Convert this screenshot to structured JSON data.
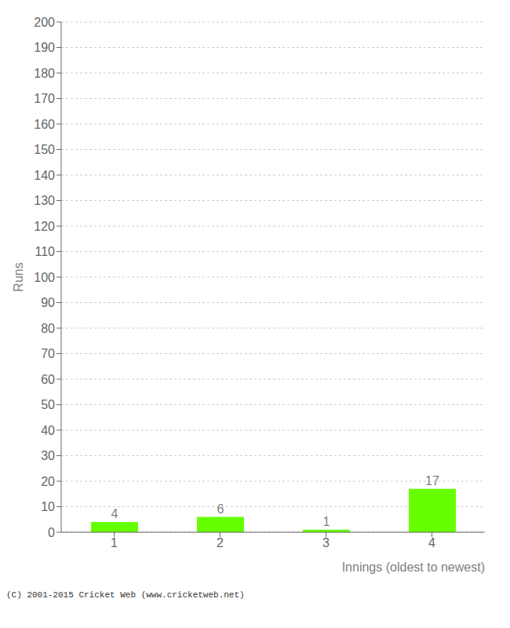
{
  "chart_data": {
    "type": "bar",
    "categories": [
      1,
      2,
      3,
      4
    ],
    "values": [
      4,
      6,
      1,
      17
    ],
    "color": "#66ff00",
    "xlabel": "Innings (oldest to newest)",
    "ylabel": "Runs",
    "ylim": [
      0,
      200
    ],
    "yticks": [
      0,
      10,
      20,
      30,
      40,
      50,
      60,
      70,
      80,
      90,
      100,
      110,
      120,
      130,
      140,
      150,
      160,
      170,
      180,
      190,
      200
    ],
    "grid": true,
    "data_labels": true,
    "annotations": [
      "(C) 2001-2015 Cricket Web (www.cricketweb.net)"
    ]
  }
}
